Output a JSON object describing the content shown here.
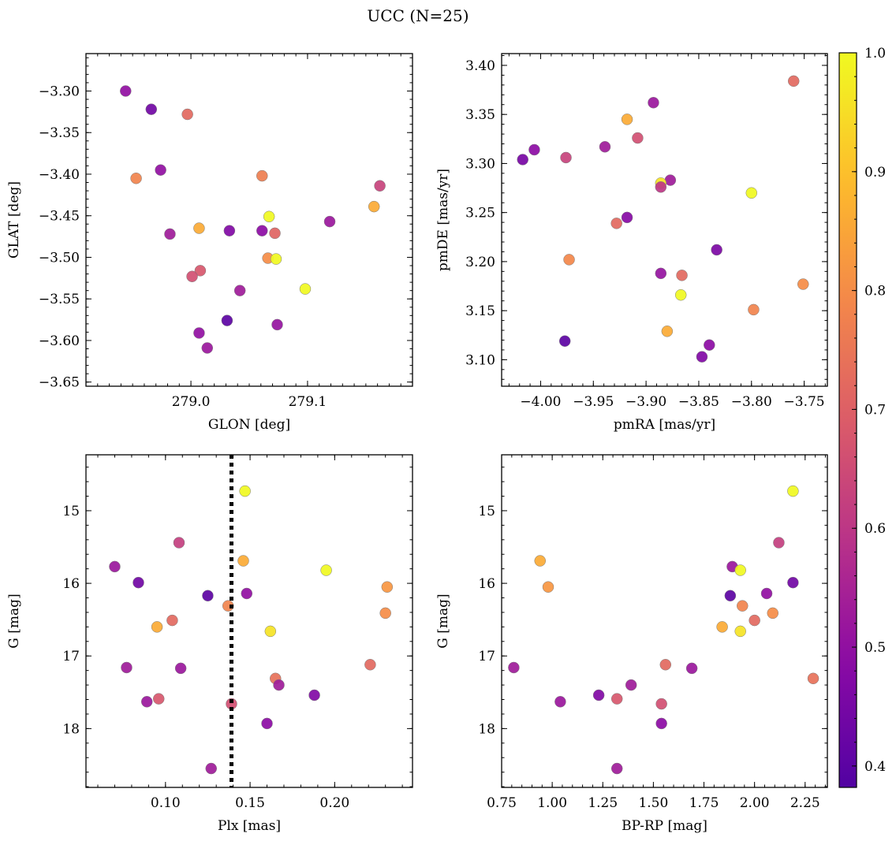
{
  "figure_title": "UCC (N=25)",
  "colorbar": {
    "range": [
      0.382,
      1.0
    ],
    "ticks": [
      0.4,
      0.5,
      0.6,
      0.7,
      0.8,
      0.9,
      1.0
    ],
    "tick_labels": [
      "0.4",
      "0.5",
      "0.6",
      "0.7",
      "0.8",
      "0.9",
      "1.0"
    ],
    "colormap": "plasma"
  },
  "chart_data": [
    {
      "type": "scatter",
      "xlabel": "GLON [deg]",
      "ylabel": "GLAT [deg]",
      "xlim": [
        278.91,
        279.19
      ],
      "ylim": [
        -3.655,
        -3.255
      ],
      "yinvert": false,
      "xticks": [
        279.0,
        279.1
      ],
      "xtick_labels": [
        "279.0",
        "279.1"
      ],
      "yticks": [
        -3.3,
        -3.35,
        -3.4,
        -3.45,
        -3.5,
        -3.55,
        -3.6,
        -3.65
      ],
      "ytick_labels": [
        "−3.30",
        "−3.35",
        "−3.40",
        "−3.45",
        "−3.50",
        "−3.55",
        "−3.60",
        "−3.65"
      ],
      "xminor": 0.01,
      "yminor": 0.01,
      "vline": null,
      "points": [
        {
          "x": 278.944,
          "y": -3.3,
          "c": 0.5
        },
        {
          "x": 278.966,
          "y": -3.322,
          "c": 0.44
        },
        {
          "x": 278.997,
          "y": -3.328,
          "c": 0.72
        },
        {
          "x": 278.953,
          "y": -3.405,
          "c": 0.78
        },
        {
          "x": 278.974,
          "y": -3.395,
          "c": 0.5
        },
        {
          "x": 279.061,
          "y": -3.402,
          "c": 0.77
        },
        {
          "x": 279.162,
          "y": -3.414,
          "c": 0.63
        },
        {
          "x": 279.157,
          "y": -3.439,
          "c": 0.86
        },
        {
          "x": 279.067,
          "y": -3.451,
          "c": 0.97
        },
        {
          "x": 279.119,
          "y": -3.457,
          "c": 0.52
        },
        {
          "x": 279.007,
          "y": -3.465,
          "c": 0.86
        },
        {
          "x": 278.982,
          "y": -3.472,
          "c": 0.53
        },
        {
          "x": 279.033,
          "y": -3.468,
          "c": 0.47
        },
        {
          "x": 279.061,
          "y": -3.468,
          "c": 0.49
        },
        {
          "x": 279.072,
          "y": -3.471,
          "c": 0.71
        },
        {
          "x": 279.066,
          "y": -3.501,
          "c": 0.8
        },
        {
          "x": 279.073,
          "y": -3.502,
          "c": 0.97
        },
        {
          "x": 279.008,
          "y": -3.516,
          "c": 0.68
        },
        {
          "x": 279.001,
          "y": -3.523,
          "c": 0.66
        },
        {
          "x": 279.098,
          "y": -3.538,
          "c": 0.97
        },
        {
          "x": 279.042,
          "y": -3.54,
          "c": 0.53
        },
        {
          "x": 279.031,
          "y": -3.576,
          "c": 0.4
        },
        {
          "x": 279.074,
          "y": -3.581,
          "c": 0.51
        },
        {
          "x": 279.007,
          "y": -3.591,
          "c": 0.5
        },
        {
          "x": 279.014,
          "y": -3.609,
          "c": 0.52
        }
      ]
    },
    {
      "type": "scatter",
      "xlabel": "pmRA [mas/yr]",
      "ylabel": "pmDE [mas/yr]",
      "xlim": [
        -4.037,
        -3.728
      ],
      "ylim": [
        3.073,
        3.412
      ],
      "yinvert": false,
      "xticks": [
        -4.0,
        -3.95,
        -3.9,
        -3.85,
        -3.8,
        -3.75
      ],
      "xtick_labels": [
        "−4.00",
        "−3.95",
        "−3.90",
        "−3.85",
        "−3.80",
        "−3.75"
      ],
      "yticks": [
        3.1,
        3.15,
        3.2,
        3.25,
        3.3,
        3.35,
        3.4
      ],
      "ytick_labels": [
        "3.10",
        "3.15",
        "3.20",
        "3.25",
        "3.30",
        "3.35",
        "3.40"
      ],
      "xminor": 0.01,
      "yminor": 0.01,
      "vline": null,
      "points": [
        {
          "x": -3.76,
          "y": 3.384,
          "c": 0.72
        },
        {
          "x": -3.893,
          "y": 3.362,
          "c": 0.52
        },
        {
          "x": -3.918,
          "y": 3.345,
          "c": 0.86
        },
        {
          "x": -3.908,
          "y": 3.326,
          "c": 0.66
        },
        {
          "x": -3.939,
          "y": 3.317,
          "c": 0.53
        },
        {
          "x": -4.006,
          "y": 3.314,
          "c": 0.49
        },
        {
          "x": -3.976,
          "y": 3.306,
          "c": 0.63
        },
        {
          "x": -4.017,
          "y": 3.304,
          "c": 0.45
        },
        {
          "x": -3.877,
          "y": 3.283,
          "c": 0.53
        },
        {
          "x": -3.886,
          "y": 3.28,
          "c": 0.96
        },
        {
          "x": -3.886,
          "y": 3.276,
          "c": 0.6
        },
        {
          "x": -3.8,
          "y": 3.27,
          "c": 0.97
        },
        {
          "x": -3.918,
          "y": 3.245,
          "c": 0.48
        },
        {
          "x": -3.928,
          "y": 3.239,
          "c": 0.72
        },
        {
          "x": -3.833,
          "y": 3.212,
          "c": 0.46
        },
        {
          "x": -3.973,
          "y": 3.202,
          "c": 0.79
        },
        {
          "x": -3.886,
          "y": 3.188,
          "c": 0.51
        },
        {
          "x": -3.866,
          "y": 3.186,
          "c": 0.72
        },
        {
          "x": -3.751,
          "y": 3.177,
          "c": 0.8
        },
        {
          "x": -3.867,
          "y": 3.166,
          "c": 0.97
        },
        {
          "x": -3.798,
          "y": 3.151,
          "c": 0.78
        },
        {
          "x": -3.88,
          "y": 3.129,
          "c": 0.86
        },
        {
          "x": -3.977,
          "y": 3.119,
          "c": 0.4
        },
        {
          "x": -3.84,
          "y": 3.115,
          "c": 0.49
        },
        {
          "x": -3.847,
          "y": 3.103,
          "c": 0.47
        }
      ]
    },
    {
      "type": "scatter",
      "xlabel": "Plx [mas]",
      "ylabel": "G [mag]",
      "xlim": [
        0.053,
        0.246
      ],
      "ylim": [
        18.81,
        14.23
      ],
      "yinvert": true,
      "xticks": [
        0.1,
        0.15,
        0.2
      ],
      "xtick_labels": [
        "0.10",
        "0.15",
        "0.20"
      ],
      "yticks": [
        15,
        16,
        17,
        18
      ],
      "ytick_labels": [
        "15",
        "16",
        "17",
        "18"
      ],
      "xminor": 0.01,
      "yminor": 0.2,
      "vline": 0.139,
      "points": [
        {
          "x": 0.147,
          "y": 14.73,
          "c": 0.97
        },
        {
          "x": 0.108,
          "y": 15.44,
          "c": 0.62
        },
        {
          "x": 0.146,
          "y": 15.69,
          "c": 0.86
        },
        {
          "x": 0.07,
          "y": 15.77,
          "c": 0.52
        },
        {
          "x": 0.195,
          "y": 15.82,
          "c": 0.97
        },
        {
          "x": 0.084,
          "y": 15.99,
          "c": 0.44
        },
        {
          "x": 0.231,
          "y": 16.05,
          "c": 0.82
        },
        {
          "x": 0.148,
          "y": 16.14,
          "c": 0.5
        },
        {
          "x": 0.125,
          "y": 16.17,
          "c": 0.4
        },
        {
          "x": 0.137,
          "y": 16.31,
          "c": 0.78
        },
        {
          "x": 0.23,
          "y": 16.41,
          "c": 0.8
        },
        {
          "x": 0.104,
          "y": 16.51,
          "c": 0.72
        },
        {
          "x": 0.095,
          "y": 16.6,
          "c": 0.86
        },
        {
          "x": 0.162,
          "y": 16.66,
          "c": 0.96
        },
        {
          "x": 0.221,
          "y": 17.12,
          "c": 0.72
        },
        {
          "x": 0.077,
          "y": 17.16,
          "c": 0.53
        },
        {
          "x": 0.109,
          "y": 17.17,
          "c": 0.52
        },
        {
          "x": 0.165,
          "y": 17.31,
          "c": 0.74
        },
        {
          "x": 0.167,
          "y": 17.4,
          "c": 0.53
        },
        {
          "x": 0.188,
          "y": 17.54,
          "c": 0.47
        },
        {
          "x": 0.096,
          "y": 17.59,
          "c": 0.68
        },
        {
          "x": 0.089,
          "y": 17.63,
          "c": 0.52
        },
        {
          "x": 0.139,
          "y": 17.66,
          "c": 0.66
        },
        {
          "x": 0.16,
          "y": 17.93,
          "c": 0.49
        },
        {
          "x": 0.127,
          "y": 18.55,
          "c": 0.53
        }
      ]
    },
    {
      "type": "scatter",
      "xlabel": "BP-RP [mag]",
      "ylabel": "G [mag]",
      "xlim": [
        0.75,
        2.36
      ],
      "ylim": [
        18.81,
        14.23
      ],
      "yinvert": true,
      "xticks": [
        0.75,
        1.0,
        1.25,
        1.5,
        1.75,
        2.0,
        2.25
      ],
      "xtick_labels": [
        "0.75",
        "1.00",
        "1.25",
        "1.50",
        "1.75",
        "2.00",
        "2.25"
      ],
      "yticks": [
        15,
        16,
        17,
        18
      ],
      "ytick_labels": [
        "15",
        "16",
        "17",
        "18"
      ],
      "xminor": 0.05,
      "yminor": 0.2,
      "vline": null,
      "points": [
        {
          "x": 2.19,
          "y": 14.73,
          "c": 0.97
        },
        {
          "x": 2.12,
          "y": 15.44,
          "c": 0.62
        },
        {
          "x": 0.94,
          "y": 15.69,
          "c": 0.86
        },
        {
          "x": 1.89,
          "y": 15.77,
          "c": 0.52
        },
        {
          "x": 1.93,
          "y": 15.82,
          "c": 0.97
        },
        {
          "x": 2.19,
          "y": 15.99,
          "c": 0.44
        },
        {
          "x": 0.98,
          "y": 16.05,
          "c": 0.82
        },
        {
          "x": 2.06,
          "y": 16.14,
          "c": 0.5
        },
        {
          "x": 1.88,
          "y": 16.17,
          "c": 0.4
        },
        {
          "x": 1.94,
          "y": 16.31,
          "c": 0.78
        },
        {
          "x": 2.09,
          "y": 16.41,
          "c": 0.8
        },
        {
          "x": 2.0,
          "y": 16.51,
          "c": 0.72
        },
        {
          "x": 1.84,
          "y": 16.6,
          "c": 0.86
        },
        {
          "x": 1.93,
          "y": 16.66,
          "c": 0.96
        },
        {
          "x": 1.56,
          "y": 17.12,
          "c": 0.72
        },
        {
          "x": 0.81,
          "y": 17.16,
          "c": 0.53
        },
        {
          "x": 1.69,
          "y": 17.17,
          "c": 0.52
        },
        {
          "x": 2.29,
          "y": 17.31,
          "c": 0.74
        },
        {
          "x": 1.39,
          "y": 17.4,
          "c": 0.53
        },
        {
          "x": 1.23,
          "y": 17.54,
          "c": 0.47
        },
        {
          "x": 1.32,
          "y": 17.59,
          "c": 0.68
        },
        {
          "x": 1.04,
          "y": 17.63,
          "c": 0.52
        },
        {
          "x": 1.54,
          "y": 17.66,
          "c": 0.66
        },
        {
          "x": 1.54,
          "y": 17.93,
          "c": 0.49
        },
        {
          "x": 1.32,
          "y": 18.55,
          "c": 0.53
        }
      ]
    }
  ]
}
